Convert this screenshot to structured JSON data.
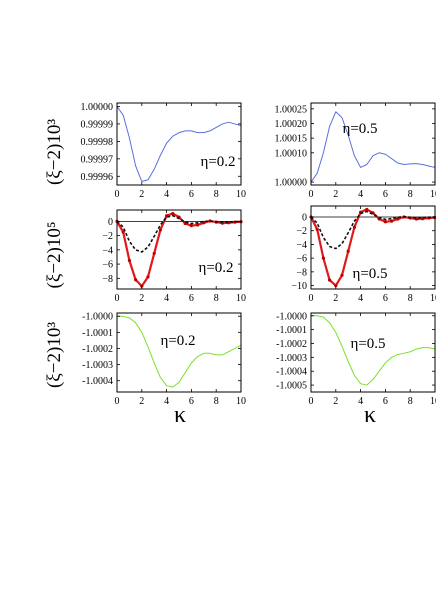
{
  "figure": {
    "row_labels": [
      "(ξ−2)10³",
      "(ξ−2)10⁵",
      "(ξ−2)10³"
    ],
    "x_axis_labels": [
      "κ",
      "κ"
    ]
  },
  "chart_data": [
    {
      "type": "line",
      "row": 0,
      "col": 0,
      "annotation": "η=0.2",
      "xlim": [
        0,
        10
      ],
      "ylim": [
        0.999955,
        1.000002
      ],
      "xticks": [
        0,
        2,
        4,
        6,
        8,
        10
      ],
      "yticks": [
        0.99996,
        0.99997,
        0.99998,
        0.99999,
        1.0
      ],
      "ytick_labels": [
        "0.99996",
        "0.99997",
        "0.99998",
        "0.99999",
        "1.00000"
      ],
      "series": [
        {
          "color": "#5a6fe0",
          "style": "solid",
          "x": [
            0,
            0.5,
            1,
            1.5,
            2,
            2.5,
            3,
            3.5,
            4,
            4.5,
            5,
            5.5,
            6,
            6.5,
            7,
            7.5,
            8,
            8.5,
            9,
            9.5,
            10
          ],
          "y": [
            1.0,
            0.999995,
            0.999982,
            0.999966,
            0.999957,
            0.999958,
            0.999964,
            0.999972,
            0.999979,
            0.999983,
            0.999985,
            0.999986,
            0.999986,
            0.999985,
            0.999985,
            0.999986,
            0.999988,
            0.99999,
            0.999991,
            0.99999,
            0.999989
          ]
        }
      ]
    },
    {
      "type": "line",
      "row": 0,
      "col": 1,
      "annotation": "η=0.5",
      "xlim": [
        0,
        10
      ],
      "ylim": [
        0.99999,
        1.00027
      ],
      "xticks": [
        0,
        2,
        4,
        6,
        8,
        10
      ],
      "yticks": [
        1.0,
        1.0001,
        1.00015,
        1.0002,
        1.00025
      ],
      "ytick_labels": [
        "1.00000",
        "1.00010",
        "1.00015",
        "1.00020",
        "1.00025"
      ],
      "series": [
        {
          "color": "#5a6fe0",
          "style": "solid",
          "x": [
            0,
            0.5,
            1,
            1.5,
            2,
            2.5,
            3,
            3.5,
            4,
            4.5,
            5,
            5.5,
            6,
            6.5,
            7,
            7.5,
            8,
            8.5,
            9,
            9.5,
            10
          ],
          "y": [
            1.0,
            1.00003,
            1.0001,
            1.00019,
            1.00024,
            1.00022,
            1.00016,
            1.00009,
            1.00005,
            1.00006,
            1.00009,
            1.0001,
            1.000095,
            1.00008,
            1.000065,
            1.00006,
            1.000062,
            1.000063,
            1.00006,
            1.000055,
            1.00005
          ]
        }
      ]
    },
    {
      "type": "line",
      "row": 1,
      "col": 0,
      "annotation": "η=0.2",
      "xlim": [
        0,
        10
      ],
      "ylim": [
        -9.5,
        1.6
      ],
      "xticks": [
        0,
        2,
        4,
        6,
        8,
        10
      ],
      "yticks": [
        0,
        -2,
        -4,
        -6,
        -8
      ],
      "ytick_labels": [
        "0",
        "−2",
        "−4",
        "−6",
        "−8"
      ],
      "series": [
        {
          "color": "#e01a1a",
          "style": "solid",
          "x": [
            0,
            0.5,
            1,
            1.5,
            2,
            2.5,
            3,
            3.5,
            4,
            4.5,
            5,
            5.5,
            6,
            6.5,
            7,
            7.5,
            8,
            8.5,
            9,
            9.5,
            10
          ],
          "y": [
            0,
            -1.5,
            -5.5,
            -8.2,
            -9.1,
            -7.8,
            -4.5,
            -1.2,
            0.8,
            1.1,
            0.6,
            -0.3,
            -0.6,
            -0.5,
            -0.2,
            0.05,
            -0.1,
            -0.25,
            -0.2,
            -0.1,
            -0.05
          ]
        },
        {
          "color": "#111111",
          "style": "dashed",
          "x": [
            0,
            0.5,
            1,
            1.5,
            2,
            2.5,
            3,
            3.5,
            4,
            4.5,
            5,
            5.5,
            6,
            6.5,
            7,
            7.5,
            8,
            8.5,
            9,
            9.5,
            10
          ],
          "y": [
            0,
            -0.8,
            -2.8,
            -4.0,
            -4.3,
            -3.6,
            -2.1,
            -0.5,
            0.6,
            0.8,
            0.4,
            -0.1,
            -0.3,
            -0.2,
            0,
            0.05,
            -0.05,
            -0.1,
            -0.1,
            -0.05,
            0
          ]
        }
      ]
    },
    {
      "type": "line",
      "row": 1,
      "col": 1,
      "annotation": "η=0.5",
      "xlim": [
        0,
        10
      ],
      "ylim": [
        -10.5,
        1.6
      ],
      "xticks": [
        0,
        2,
        4,
        6,
        8,
        10
      ],
      "yticks": [
        0,
        -2,
        -4,
        -6,
        -8,
        -10
      ],
      "ytick_labels": [
        "0",
        "−2",
        "−4",
        "−6",
        "−8",
        "−10"
      ],
      "series": [
        {
          "color": "#e01a1a",
          "style": "solid",
          "x": [
            0,
            0.5,
            1,
            1.5,
            2,
            2.5,
            3,
            3.5,
            4,
            4.5,
            5,
            5.5,
            6,
            6.5,
            7,
            7.5,
            8,
            8.5,
            9,
            9.5,
            10
          ],
          "y": [
            0,
            -1.8,
            -6.0,
            -9.2,
            -10.0,
            -8.5,
            -5.0,
            -1.5,
            0.7,
            1.1,
            0.6,
            -0.3,
            -0.7,
            -0.6,
            -0.3,
            0,
            -0.15,
            -0.3,
            -0.25,
            -0.15,
            -0.1
          ]
        },
        {
          "color": "#111111",
          "style": "dashed",
          "x": [
            0,
            0.5,
            1,
            1.5,
            2,
            2.5,
            3,
            3.5,
            4,
            4.5,
            5,
            5.5,
            6,
            6.5,
            7,
            7.5,
            8,
            8.5,
            9,
            9.5,
            10
          ],
          "y": [
            0,
            -0.9,
            -3.0,
            -4.3,
            -4.6,
            -3.9,
            -2.3,
            -0.6,
            0.5,
            0.8,
            0.4,
            -0.1,
            -0.35,
            -0.25,
            -0.05,
            0.05,
            -0.05,
            -0.15,
            -0.1,
            -0.05,
            0
          ]
        }
      ]
    },
    {
      "type": "line",
      "row": 2,
      "col": 0,
      "annotation": "η=0.2",
      "xlim": [
        0,
        10
      ],
      "ylim": [
        -1.00047,
        -0.99998
      ],
      "xticks": [
        0,
        2,
        4,
        6,
        8,
        10
      ],
      "yticks": [
        -1.0,
        -1.0001,
        -1.0002,
        -1.0003,
        -1.0004
      ],
      "ytick_labels": [
        "-1.0000",
        "-1.0001",
        "-1.0002",
        "-1.0003",
        "-1.0004"
      ],
      "series": [
        {
          "color": "#7be02a",
          "style": "solid",
          "x": [
            0,
            0.5,
            1,
            1.5,
            2,
            2.5,
            3,
            3.5,
            4,
            4.5,
            5,
            5.5,
            6,
            6.5,
            7,
            7.5,
            8,
            8.5,
            9,
            9.5,
            10
          ],
          "y": [
            -1.0,
            -1.0,
            -1.00001,
            -1.00004,
            -1.0001,
            -1.00019,
            -1.00029,
            -1.00038,
            -1.00043,
            -1.00044,
            -1.00041,
            -1.00035,
            -1.00029,
            -1.00025,
            -1.00023,
            -1.00023,
            -1.00024,
            -1.00024,
            -1.00022,
            -1.0002,
            -1.00018
          ]
        }
      ]
    },
    {
      "type": "line",
      "row": 2,
      "col": 1,
      "annotation": "η=0.5",
      "xlim": [
        0,
        10
      ],
      "ylim": [
        -1.00055,
        -0.99998
      ],
      "xticks": [
        0,
        2,
        4,
        6,
        8,
        10
      ],
      "yticks": [
        -1.0,
        -1.0001,
        -1.0002,
        -1.0003,
        -1.0004,
        -1.0005
      ],
      "ytick_labels": [
        "-1.0000",
        "-1.0001",
        "-1.0002",
        "-1.0003",
        "-1.0004",
        "-1.0005"
      ],
      "series": [
        {
          "color": "#7be02a",
          "style": "solid",
          "x": [
            0,
            0.5,
            1,
            1.5,
            2,
            2.5,
            3,
            3.5,
            4,
            4.5,
            5,
            5.5,
            6,
            6.5,
            7,
            7.5,
            8,
            8.5,
            9,
            9.5,
            10
          ],
          "y": [
            -1.0,
            -1.0,
            -1.00001,
            -1.00005,
            -1.00012,
            -1.00022,
            -1.00033,
            -1.00043,
            -1.00049,
            -1.0005,
            -1.00046,
            -1.0004,
            -1.00034,
            -1.0003,
            -1.00028,
            -1.00027,
            -1.00026,
            -1.00024,
            -1.00023,
            -1.00023,
            -1.00024
          ]
        }
      ]
    }
  ]
}
